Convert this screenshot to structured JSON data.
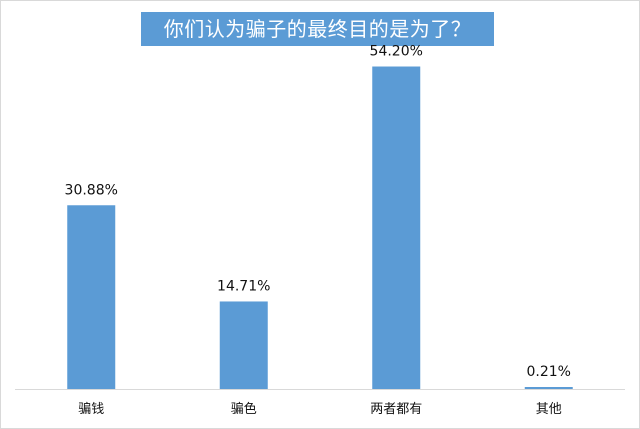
{
  "chart_data": {
    "type": "bar",
    "title": "你们认为骗子的最终目的是为了？",
    "categories": [
      "骗钱",
      "骗色",
      "两者都有",
      "其他"
    ],
    "values": [
      30.88,
      14.71,
      54.2,
      0.21
    ],
    "value_labels": [
      "30.88%",
      "14.71%",
      "54.20%",
      "0.21%"
    ],
    "unit": "%",
    "ylim": [
      0,
      60
    ],
    "grid": false,
    "legend": "none",
    "bar_color": "#5b9bd5",
    "title_bg_color": "#5b9bd5",
    "title_text_color": "#ffffff"
  }
}
